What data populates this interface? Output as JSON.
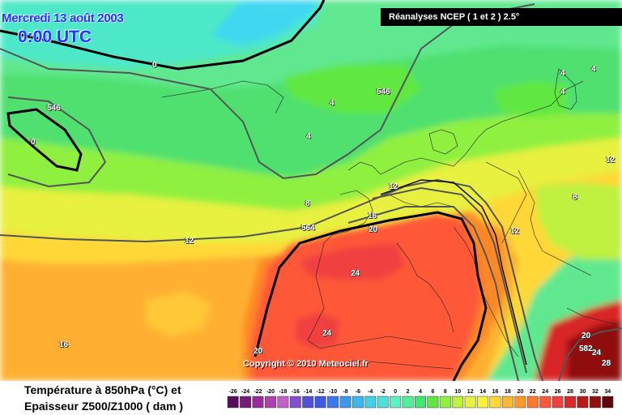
{
  "header": {
    "date": "Mercredi 13 août 2003",
    "time": "0:00 UTC",
    "source": "Réanalyses NCEP ( 1 et 2 ) 2.5°"
  },
  "copyright": "Copyright © 2010 Meteociel.fr",
  "caption": {
    "line1": "Température à 850hPa (°C) et",
    "line2": "Epaisseur Z500/Z1000 ( dam )"
  },
  "labels": {
    "temp_0_a": "0",
    "temp_0_b": "0",
    "temp_4_a": "4",
    "temp_4_b": "4",
    "temp_4_c": "4",
    "temp_4_d": "4",
    "temp_4_e": "4",
    "temp_8_a": "8",
    "temp_8_b": "8",
    "temp_12_a": "12",
    "temp_12_b": "12",
    "temp_12_c": "12",
    "temp_12_d": "12",
    "temp_16_a": "16",
    "temp_16_b": "16",
    "temp_20_a": "20",
    "temp_20_b": "20",
    "temp_20_c": "20",
    "temp_24_a": "24",
    "temp_24_b": "24",
    "temp_24_c": "24",
    "temp_28": "28",
    "thick_546_a": "546",
    "thick_546_b": "546",
    "thick_564": "564",
    "thick_582": "582"
  },
  "legend": {
    "ticks": [
      "-26",
      "-24",
      "-22",
      "-20",
      "-18",
      "-16",
      "-14",
      "-12",
      "-10",
      "-8",
      "-6",
      "-4",
      "-2",
      "0",
      "2",
      "4",
      "6",
      "8",
      "10",
      "12",
      "14",
      "16",
      "18",
      "20",
      "22",
      "24",
      "26",
      "28",
      "30",
      "32",
      "34"
    ],
    "colors": [
      "#5a0a5a",
      "#7a1a7a",
      "#9a2a9a",
      "#b040b0",
      "#c060c8",
      "#8050d0",
      "#5050d8",
      "#3a5ae8",
      "#3a78f0",
      "#3a98f0",
      "#3ab8f0",
      "#40d0e8",
      "#50e0d8",
      "#60f0c8",
      "#50f098",
      "#40e870",
      "#60e840",
      "#90f040",
      "#c0f040",
      "#e8f040",
      "#fff040",
      "#ffd838",
      "#ffb830",
      "#ff9828",
      "#ff7830",
      "#ff5838",
      "#f04040",
      "#d82828",
      "#b81818",
      "#901010",
      "#600808"
    ],
    "unit": "°C"
  }
}
